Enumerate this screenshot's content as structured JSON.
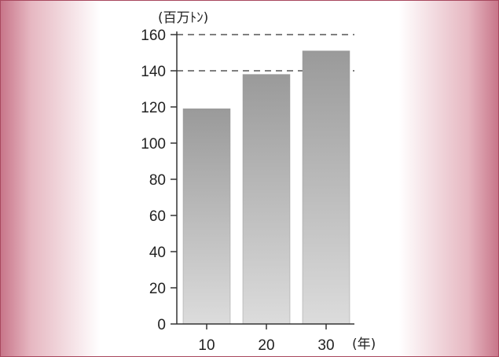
{
  "chart_data": {
    "type": "bar",
    "categories": [
      "10",
      "20",
      "30"
    ],
    "values": [
      119,
      138,
      151
    ],
    "ylim": [
      0,
      160
    ],
    "yticks": [
      "0",
      "20",
      "40",
      "60",
      "80",
      "100",
      "120",
      "140",
      "160"
    ],
    "ylabel": "(百万ﾄﾝ)",
    "xlabel": "(年)",
    "dashed_gridlines_at": [
      140,
      160
    ],
    "bar_color_top": "#9a9a9a",
    "bar_color_bottom": "#dcdcdc"
  }
}
